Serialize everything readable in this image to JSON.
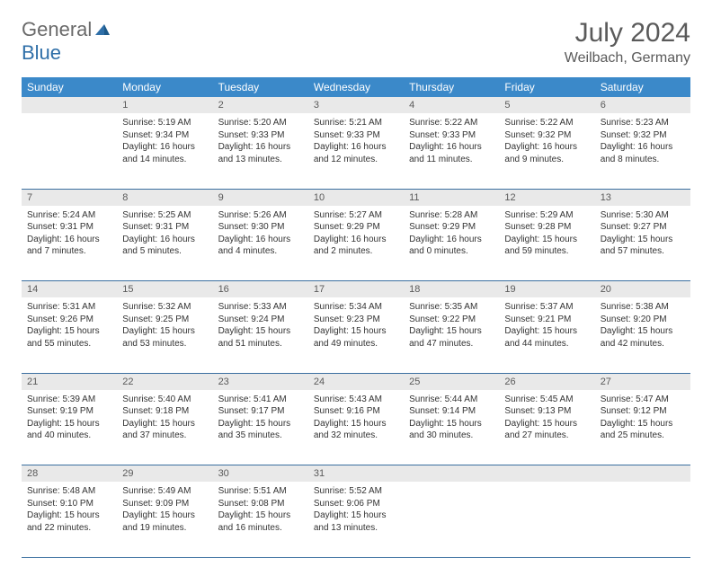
{
  "brand": {
    "general": "General",
    "blue": "Blue"
  },
  "title": "July 2024",
  "location": "Weilbach, Germany",
  "colors": {
    "header_bg": "#3b89c9",
    "header_text": "#ffffff",
    "daynum_bg": "#e9e9e9",
    "daynum_text": "#5a5a5a",
    "border": "#3b6fa0",
    "body_text": "#333333",
    "title_text": "#5a5a5a",
    "logo_gray": "#6a6a6a",
    "logo_blue": "#2f6fa8"
  },
  "weekdays": [
    "Sunday",
    "Monday",
    "Tuesday",
    "Wednesday",
    "Thursday",
    "Friday",
    "Saturday"
  ],
  "weeks": [
    {
      "nums": [
        "",
        "1",
        "2",
        "3",
        "4",
        "5",
        "6"
      ],
      "cells": [
        null,
        {
          "sunrise": "Sunrise: 5:19 AM",
          "sunset": "Sunset: 9:34 PM",
          "day1": "Daylight: 16 hours",
          "day2": "and 14 minutes."
        },
        {
          "sunrise": "Sunrise: 5:20 AM",
          "sunset": "Sunset: 9:33 PM",
          "day1": "Daylight: 16 hours",
          "day2": "and 13 minutes."
        },
        {
          "sunrise": "Sunrise: 5:21 AM",
          "sunset": "Sunset: 9:33 PM",
          "day1": "Daylight: 16 hours",
          "day2": "and 12 minutes."
        },
        {
          "sunrise": "Sunrise: 5:22 AM",
          "sunset": "Sunset: 9:33 PM",
          "day1": "Daylight: 16 hours",
          "day2": "and 11 minutes."
        },
        {
          "sunrise": "Sunrise: 5:22 AM",
          "sunset": "Sunset: 9:32 PM",
          "day1": "Daylight: 16 hours",
          "day2": "and 9 minutes."
        },
        {
          "sunrise": "Sunrise: 5:23 AM",
          "sunset": "Sunset: 9:32 PM",
          "day1": "Daylight: 16 hours",
          "day2": "and 8 minutes."
        }
      ]
    },
    {
      "nums": [
        "7",
        "8",
        "9",
        "10",
        "11",
        "12",
        "13"
      ],
      "cells": [
        {
          "sunrise": "Sunrise: 5:24 AM",
          "sunset": "Sunset: 9:31 PM",
          "day1": "Daylight: 16 hours",
          "day2": "and 7 minutes."
        },
        {
          "sunrise": "Sunrise: 5:25 AM",
          "sunset": "Sunset: 9:31 PM",
          "day1": "Daylight: 16 hours",
          "day2": "and 5 minutes."
        },
        {
          "sunrise": "Sunrise: 5:26 AM",
          "sunset": "Sunset: 9:30 PM",
          "day1": "Daylight: 16 hours",
          "day2": "and 4 minutes."
        },
        {
          "sunrise": "Sunrise: 5:27 AM",
          "sunset": "Sunset: 9:29 PM",
          "day1": "Daylight: 16 hours",
          "day2": "and 2 minutes."
        },
        {
          "sunrise": "Sunrise: 5:28 AM",
          "sunset": "Sunset: 9:29 PM",
          "day1": "Daylight: 16 hours",
          "day2": "and 0 minutes."
        },
        {
          "sunrise": "Sunrise: 5:29 AM",
          "sunset": "Sunset: 9:28 PM",
          "day1": "Daylight: 15 hours",
          "day2": "and 59 minutes."
        },
        {
          "sunrise": "Sunrise: 5:30 AM",
          "sunset": "Sunset: 9:27 PM",
          "day1": "Daylight: 15 hours",
          "day2": "and 57 minutes."
        }
      ]
    },
    {
      "nums": [
        "14",
        "15",
        "16",
        "17",
        "18",
        "19",
        "20"
      ],
      "cells": [
        {
          "sunrise": "Sunrise: 5:31 AM",
          "sunset": "Sunset: 9:26 PM",
          "day1": "Daylight: 15 hours",
          "day2": "and 55 minutes."
        },
        {
          "sunrise": "Sunrise: 5:32 AM",
          "sunset": "Sunset: 9:25 PM",
          "day1": "Daylight: 15 hours",
          "day2": "and 53 minutes."
        },
        {
          "sunrise": "Sunrise: 5:33 AM",
          "sunset": "Sunset: 9:24 PM",
          "day1": "Daylight: 15 hours",
          "day2": "and 51 minutes."
        },
        {
          "sunrise": "Sunrise: 5:34 AM",
          "sunset": "Sunset: 9:23 PM",
          "day1": "Daylight: 15 hours",
          "day2": "and 49 minutes."
        },
        {
          "sunrise": "Sunrise: 5:35 AM",
          "sunset": "Sunset: 9:22 PM",
          "day1": "Daylight: 15 hours",
          "day2": "and 47 minutes."
        },
        {
          "sunrise": "Sunrise: 5:37 AM",
          "sunset": "Sunset: 9:21 PM",
          "day1": "Daylight: 15 hours",
          "day2": "and 44 minutes."
        },
        {
          "sunrise": "Sunrise: 5:38 AM",
          "sunset": "Sunset: 9:20 PM",
          "day1": "Daylight: 15 hours",
          "day2": "and 42 minutes."
        }
      ]
    },
    {
      "nums": [
        "21",
        "22",
        "23",
        "24",
        "25",
        "26",
        "27"
      ],
      "cells": [
        {
          "sunrise": "Sunrise: 5:39 AM",
          "sunset": "Sunset: 9:19 PM",
          "day1": "Daylight: 15 hours",
          "day2": "and 40 minutes."
        },
        {
          "sunrise": "Sunrise: 5:40 AM",
          "sunset": "Sunset: 9:18 PM",
          "day1": "Daylight: 15 hours",
          "day2": "and 37 minutes."
        },
        {
          "sunrise": "Sunrise: 5:41 AM",
          "sunset": "Sunset: 9:17 PM",
          "day1": "Daylight: 15 hours",
          "day2": "and 35 minutes."
        },
        {
          "sunrise": "Sunrise: 5:43 AM",
          "sunset": "Sunset: 9:16 PM",
          "day1": "Daylight: 15 hours",
          "day2": "and 32 minutes."
        },
        {
          "sunrise": "Sunrise: 5:44 AM",
          "sunset": "Sunset: 9:14 PM",
          "day1": "Daylight: 15 hours",
          "day2": "and 30 minutes."
        },
        {
          "sunrise": "Sunrise: 5:45 AM",
          "sunset": "Sunset: 9:13 PM",
          "day1": "Daylight: 15 hours",
          "day2": "and 27 minutes."
        },
        {
          "sunrise": "Sunrise: 5:47 AM",
          "sunset": "Sunset: 9:12 PM",
          "day1": "Daylight: 15 hours",
          "day2": "and 25 minutes."
        }
      ]
    },
    {
      "nums": [
        "28",
        "29",
        "30",
        "31",
        "",
        "",
        ""
      ],
      "cells": [
        {
          "sunrise": "Sunrise: 5:48 AM",
          "sunset": "Sunset: 9:10 PM",
          "day1": "Daylight: 15 hours",
          "day2": "and 22 minutes."
        },
        {
          "sunrise": "Sunrise: 5:49 AM",
          "sunset": "Sunset: 9:09 PM",
          "day1": "Daylight: 15 hours",
          "day2": "and 19 minutes."
        },
        {
          "sunrise": "Sunrise: 5:51 AM",
          "sunset": "Sunset: 9:08 PM",
          "day1": "Daylight: 15 hours",
          "day2": "and 16 minutes."
        },
        {
          "sunrise": "Sunrise: 5:52 AM",
          "sunset": "Sunset: 9:06 PM",
          "day1": "Daylight: 15 hours",
          "day2": "and 13 minutes."
        },
        null,
        null,
        null
      ]
    }
  ]
}
